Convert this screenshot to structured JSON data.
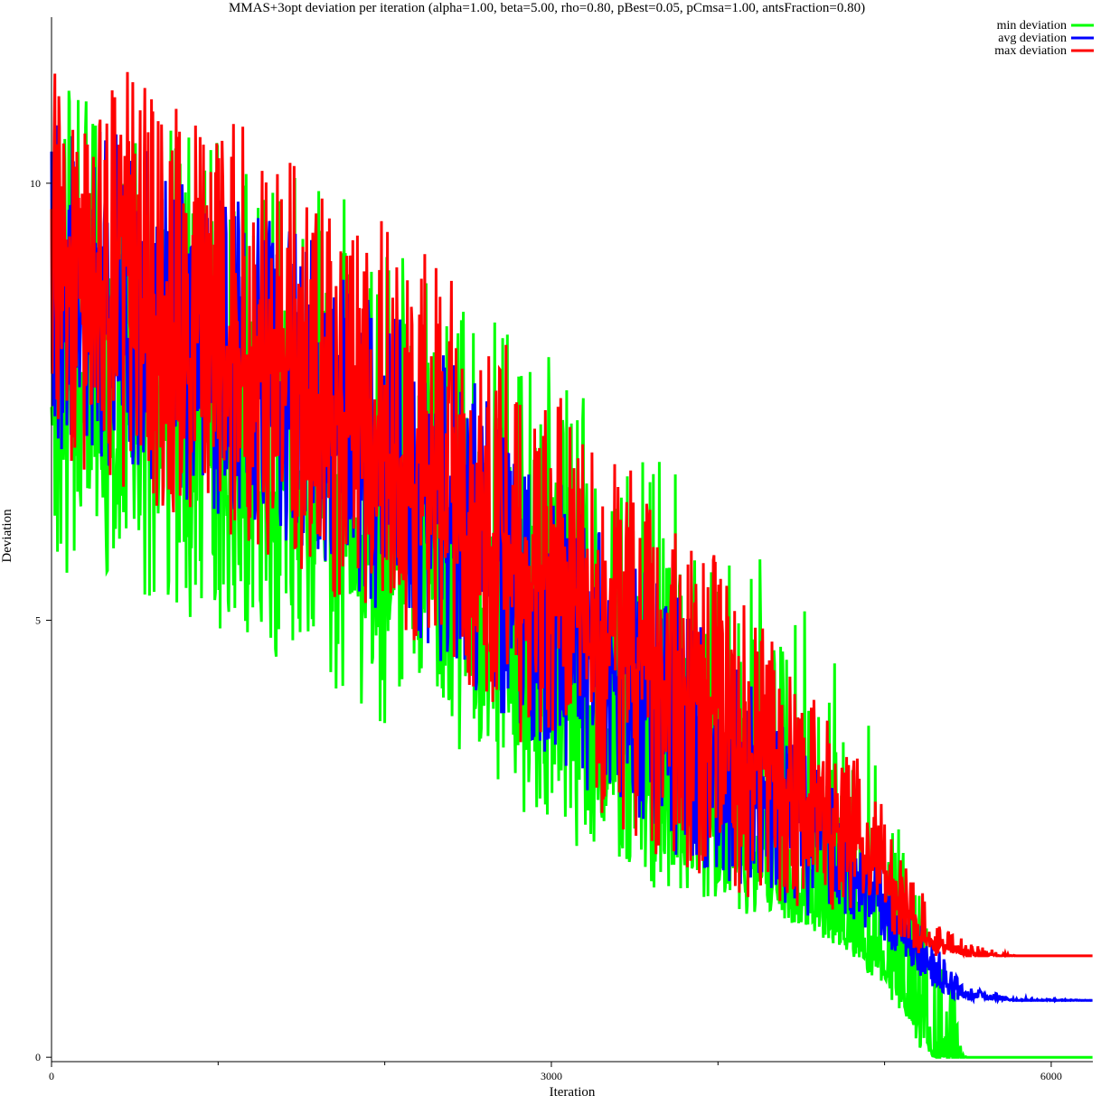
{
  "chart_data": {
    "type": "line",
    "title": "MMAS+3opt deviation per iteration (alpha=1.00, beta=5.00, rho=0.80, pBest=0.05, pCmsa=1.00, antsFraction=0.80)",
    "xlabel": "Iteration",
    "ylabel": "Deviation",
    "xlim": [
      0,
      6250
    ],
    "ylim": [
      -0.05,
      11.9
    ],
    "x_ticks": [
      0,
      3000,
      6000
    ],
    "x_tick_labels": [
      "0",
      "3000",
      "6000"
    ],
    "x_minor_ticks": [
      1000,
      2000,
      4000,
      5000
    ],
    "y_ticks": [
      0,
      5,
      10
    ],
    "y_tick_labels": [
      "0",
      "5",
      "10"
    ],
    "grid": false,
    "legend_position": "top-right",
    "series": [
      {
        "name": "min deviation",
        "color": "#00ff00",
        "x": [
          0,
          250,
          500,
          750,
          1000,
          1250,
          1500,
          1750,
          2000,
          2250,
          2500,
          2750,
          3000,
          3250,
          3500,
          3750,
          4000,
          4250,
          4500,
          4750,
          5000,
          5100,
          5200,
          5300,
          5500,
          5800,
          6250
        ],
        "y": [
          7.6,
          7.4,
          7.2,
          7.0,
          6.8,
          6.6,
          6.4,
          6.1,
          5.7,
          5.3,
          4.9,
          4.5,
          4.1,
          3.7,
          3.3,
          2.9,
          2.5,
          2.1,
          1.8,
          1.4,
          1.0,
          0.7,
          0.4,
          0.0,
          0.0,
          0.0,
          0.0
        ],
        "y_low": [
          5.6,
          5.4,
          5.3,
          5.1,
          4.9,
          4.7,
          4.4,
          4.1,
          3.8,
          3.5,
          3.2,
          2.9,
          2.6,
          2.3,
          2.0,
          1.8,
          1.7,
          1.6,
          1.5,
          1.2,
          0.8,
          0.4,
          0.1,
          0.0,
          0.0,
          0.0,
          0.0
        ],
        "y_high": [
          11.2,
          11.0,
          10.9,
          10.7,
          10.5,
          10.3,
          10.1,
          9.9,
          9.5,
          9.2,
          8.8,
          8.4,
          8.0,
          7.6,
          7.2,
          6.8,
          6.4,
          5.9,
          5.2,
          4.5,
          3.5,
          2.6,
          2.2,
          2.0,
          0.0,
          0.0,
          0.0
        ]
      },
      {
        "name": "avg deviation",
        "color": "#0000ff",
        "x": [
          0,
          250,
          500,
          750,
          1000,
          1250,
          1500,
          1750,
          2000,
          2250,
          2500,
          2750,
          3000,
          3250,
          3500,
          3750,
          4000,
          4250,
          4500,
          4750,
          5000,
          5100,
          5200,
          5300,
          5400,
          5500,
          5800,
          6250
        ],
        "y": [
          8.6,
          8.4,
          8.2,
          8.0,
          7.8,
          7.6,
          7.4,
          7.1,
          6.7,
          6.3,
          5.9,
          5.5,
          5.1,
          4.7,
          4.3,
          3.9,
          3.5,
          3.1,
          2.7,
          2.3,
          1.8,
          1.4,
          1.1,
          0.95,
          0.8,
          0.7,
          0.65,
          0.65
        ],
        "y_low": [
          7.0,
          6.8,
          6.6,
          6.4,
          6.2,
          6.0,
          5.7,
          5.4,
          5.0,
          4.6,
          4.2,
          3.8,
          3.4,
          3.0,
          2.6,
          2.3,
          2.0,
          1.8,
          1.6,
          1.5,
          1.3,
          1.1,
          0.9,
          0.8,
          0.65,
          0.65,
          0.65,
          0.65
        ],
        "y_high": [
          11.0,
          10.7,
          10.5,
          10.2,
          10.0,
          9.8,
          9.5,
          9.2,
          8.8,
          8.3,
          7.8,
          7.3,
          6.8,
          6.3,
          5.8,
          5.3,
          4.8,
          4.2,
          3.6,
          2.9,
          2.2,
          1.9,
          1.6,
          1.3,
          1.0,
          0.8,
          0.68,
          0.65
        ]
      },
      {
        "name": "max deviation",
        "color": "#ff0000",
        "x": [
          0,
          250,
          500,
          750,
          1000,
          1250,
          1500,
          1750,
          2000,
          2250,
          2500,
          2750,
          3000,
          3250,
          3500,
          3750,
          4000,
          4250,
          4500,
          4750,
          5000,
          5100,
          5200,
          5300,
          5500,
          5800,
          6250
        ],
        "y": [
          9.0,
          8.8,
          8.6,
          8.4,
          8.2,
          8.0,
          7.7,
          7.4,
          7.0,
          6.6,
          6.2,
          5.8,
          5.4,
          5.0,
          4.6,
          4.2,
          3.8,
          3.4,
          3.0,
          2.6,
          2.1,
          1.8,
          1.5,
          1.3,
          1.16,
          1.16,
          1.16
        ],
        "y_low": [
          6.8,
          6.6,
          6.4,
          6.2,
          6.0,
          5.8,
          5.5,
          5.2,
          4.8,
          4.4,
          4.0,
          3.6,
          3.2,
          2.8,
          2.4,
          2.1,
          1.9,
          1.8,
          1.7,
          1.6,
          1.4,
          1.2,
          1.16,
          1.16,
          1.16,
          1.16,
          1.16
        ],
        "y_high": [
          11.6,
          11.4,
          11.3,
          11.1,
          10.9,
          10.7,
          10.4,
          10.1,
          9.7,
          9.2,
          8.7,
          8.2,
          7.7,
          7.2,
          6.7,
          6.2,
          5.7,
          5.0,
          4.4,
          3.7,
          2.9,
          2.3,
          2.0,
          1.6,
          1.3,
          1.16,
          1.16
        ]
      }
    ]
  }
}
